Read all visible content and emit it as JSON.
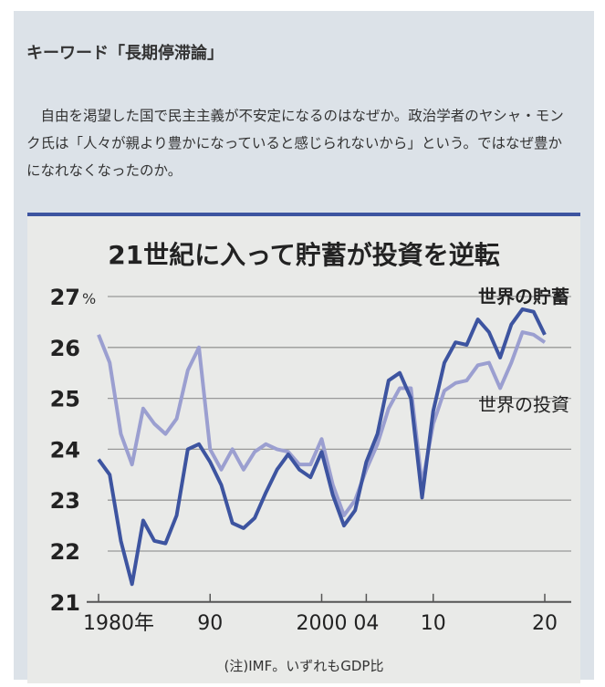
{
  "heading": "キーワード「長期停滞論」",
  "paragraph": "　自由を渇望した国で民主主義が不安定になるのはなぜか。政治学者のヤシャ・モンク氏は「人々が親より豊かになっていると感じられないから」という。ではなぜ豊かになれなくなったのか。",
  "chart_data": {
    "type": "line",
    "title": "21世紀に入って貯蓄が投資を逆転",
    "ylabel": "%",
    "ylim": [
      21,
      27
    ],
    "yticks": [
      "21",
      "22",
      "23",
      "24",
      "25",
      "26",
      "27"
    ],
    "xticks": [
      {
        "x": 1980,
        "label": "1980年"
      },
      {
        "x": 1990,
        "label": "90"
      },
      {
        "x": 2000,
        "label": "2000"
      },
      {
        "x": 2004,
        "label": "04"
      },
      {
        "x": 2010,
        "label": "10"
      },
      {
        "x": 2020,
        "label": "20"
      }
    ],
    "x": [
      1980,
      1981,
      1982,
      1983,
      1984,
      1985,
      1986,
      1987,
      1988,
      1989,
      1990,
      1991,
      1992,
      1993,
      1994,
      1995,
      1996,
      1997,
      1998,
      1999,
      2000,
      2001,
      2002,
      2003,
      2004,
      2005,
      2006,
      2007,
      2008,
      2009,
      2010,
      2011,
      2012,
      2013,
      2014,
      2015,
      2016,
      2017,
      2018,
      2019,
      2020
    ],
    "series": [
      {
        "name": "世界の投資",
        "color": "#9b9fd0",
        "values": [
          26.25,
          25.7,
          24.3,
          23.7,
          24.8,
          24.5,
          24.3,
          24.6,
          25.55,
          26.0,
          24.0,
          23.6,
          24.0,
          23.6,
          23.95,
          24.1,
          24.0,
          23.95,
          23.7,
          23.7,
          24.2,
          23.3,
          22.7,
          23.0,
          23.6,
          24.1,
          24.8,
          25.2,
          25.2,
          23.3,
          24.5,
          25.15,
          25.3,
          25.35,
          25.65,
          25.7,
          25.2,
          25.7,
          26.3,
          26.25,
          26.1
        ]
      },
      {
        "name": "世界の貯蓄",
        "color": "#3d54a0",
        "values": [
          23.8,
          23.5,
          22.2,
          21.35,
          22.6,
          22.2,
          22.15,
          22.7,
          24.0,
          24.1,
          23.75,
          23.3,
          22.55,
          22.45,
          22.65,
          23.15,
          23.6,
          23.9,
          23.6,
          23.45,
          23.95,
          23.1,
          22.5,
          22.8,
          23.75,
          24.3,
          25.35,
          25.5,
          25.0,
          23.05,
          24.75,
          25.7,
          26.1,
          26.05,
          26.55,
          26.3,
          25.8,
          26.45,
          26.75,
          26.7,
          26.25
        ]
      }
    ],
    "note": "(注)IMF。いずれもGDP比",
    "grid": true
  }
}
